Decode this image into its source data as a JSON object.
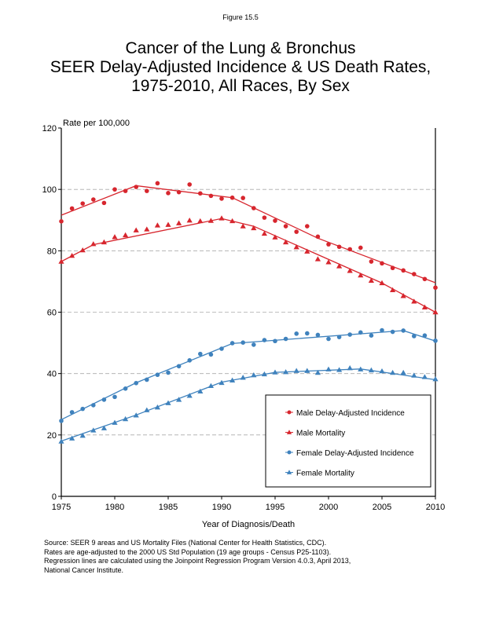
{
  "figure_label": "Figure 15.5",
  "title_lines": [
    "Cancer of the Lung & Bronchus",
    "SEER Delay-Adjusted Incidence & US Death Rates,",
    "1975-2010, All Races, By Sex"
  ],
  "footer_lines": [
    "Source: SEER 9 areas and US Mortality Files (National Center for Health Statistics, CDC).",
    "Rates are age-adjusted to the 2000 US Std Population (19 age groups - Census P25-1103).",
    "Regression lines are calculated using the Joinpoint Regression Program Version 4.0.3, April 2013,",
    "National Cancer Institute."
  ],
  "colors": {
    "male": "#d7262e",
    "female": "#3f82bd",
    "grid": "#aaaaaa"
  },
  "chart_data": {
    "type": "scatter",
    "title": "Cancer of the Lung & Bronchus SEER Delay-Adjusted Incidence & US Death Rates, 1975-2010, All Races, By Sex",
    "xlabel": "Year of Diagnosis/Death",
    "ylabel": "Rate per 100,000",
    "xlim": [
      1975,
      2010
    ],
    "ylim": [
      0,
      120
    ],
    "xticks": [
      1975,
      1980,
      1985,
      1990,
      1995,
      2000,
      2005,
      2010
    ],
    "yticks": [
      0,
      20,
      40,
      60,
      80,
      100,
      120
    ],
    "grid": "horizontal dashed",
    "legend_position": "bottom-right",
    "x": [
      1975,
      1976,
      1977,
      1978,
      1979,
      1980,
      1981,
      1982,
      1983,
      1984,
      1985,
      1986,
      1987,
      1988,
      1989,
      1990,
      1991,
      1992,
      1993,
      1994,
      1995,
      1996,
      1997,
      1998,
      1999,
      2000,
      2001,
      2002,
      2003,
      2004,
      2005,
      2006,
      2007,
      2008,
      2009,
      2010
    ],
    "series": [
      {
        "name": "Male Delay-Adjusted Incidence",
        "marker": "circle",
        "color_key": "male",
        "values": [
          89.6,
          93.8,
          95.4,
          96.7,
          95.6,
          100.0,
          99.5,
          100.8,
          99.5,
          102.0,
          98.8,
          99.1,
          101.6,
          98.7,
          97.9,
          97.0,
          97.3,
          97.2,
          93.9,
          90.8,
          89.8,
          88.0,
          86.2,
          88.0,
          84.6,
          82.1,
          81.3,
          80.5,
          81.0,
          76.5,
          75.9,
          74.4,
          73.6,
          72.4,
          70.8,
          68.0
        ],
        "regression": {
          "x": [
            1975,
            1982,
            1991,
            1999,
            2010
          ],
          "y": [
            91.6,
            101.2,
            97.3,
            84.1,
            69.6
          ]
        }
      },
      {
        "name": "Male Mortality",
        "marker": "triangle",
        "color_key": "male",
        "values": [
          76.5,
          78.4,
          80.2,
          82.2,
          82.8,
          84.5,
          85.1,
          86.7,
          87.0,
          88.3,
          88.5,
          89.0,
          89.9,
          89.7,
          89.8,
          90.6,
          89.7,
          88.0,
          87.4,
          85.6,
          84.4,
          82.8,
          81.2,
          79.8,
          77.3,
          76.3,
          75.0,
          73.5,
          72.0,
          70.3,
          69.5,
          67.2,
          65.3,
          63.5,
          61.6,
          60.0
        ],
        "regression": {
          "x": [
            1975,
            1978,
            1990,
            1993,
            2005,
            2010
          ],
          "y": [
            76.5,
            82.0,
            90.5,
            88.0,
            69.5,
            60.0
          ]
        }
      },
      {
        "name": "Female Delay-Adjusted Incidence",
        "marker": "circle",
        "color_key": "female",
        "values": [
          24.6,
          27.4,
          28.5,
          29.7,
          31.5,
          32.4,
          35.1,
          36.9,
          38.0,
          39.6,
          40.3,
          42.4,
          44.3,
          46.4,
          46.2,
          48.1,
          49.9,
          50.1,
          49.4,
          50.9,
          50.6,
          51.3,
          53.0,
          53.1,
          52.6,
          51.3,
          51.9,
          52.7,
          53.4,
          52.4,
          54.1,
          53.6,
          54.0,
          52.2,
          52.4,
          50.7
        ],
        "regression": {
          "x": [
            1975,
            1982,
            1991,
            2007,
            2010
          ],
          "y": [
            25.0,
            37.0,
            49.8,
            54.0,
            50.6
          ]
        }
      },
      {
        "name": "Female Mortality",
        "marker": "triangle",
        "color_key": "female",
        "values": [
          17.9,
          18.9,
          19.8,
          21.5,
          22.2,
          24.0,
          25.2,
          26.4,
          28.1,
          29.0,
          30.4,
          31.5,
          32.8,
          34.2,
          36.0,
          37.0,
          37.8,
          38.7,
          39.5,
          39.8,
          40.4,
          40.5,
          40.9,
          40.9,
          40.3,
          41.4,
          41.2,
          41.8,
          41.4,
          41.1,
          40.8,
          40.3,
          40.3,
          39.4,
          38.9,
          38.2
        ],
        "regression": {
          "x": [
            1975,
            1982,
            1990,
            1995,
            2003,
            2010
          ],
          "y": [
            18.0,
            26.5,
            37.2,
            40.4,
            41.5,
            38.0
          ]
        }
      }
    ]
  }
}
